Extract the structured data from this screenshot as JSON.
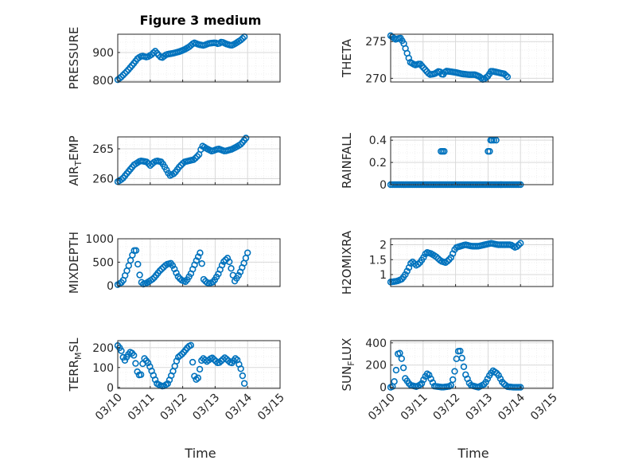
{
  "title": "Figure 3 medium",
  "xlabel": "Time",
  "colors": {
    "marker": "#0072BD",
    "grid": "#d9d9d9",
    "axis": "#262626"
  },
  "x_ticks": [
    "03/10",
    "03/11",
    "03/12",
    "03/13",
    "03/14",
    "03/15"
  ],
  "chart_data": [
    {
      "type": "scatter",
      "ylabel": "PRESSURE",
      "ylabel_main": "PRESSURE",
      "ylabel_sub": "",
      "ylabel_rest": "",
      "xlim": [
        0,
        5
      ],
      "ylim": [
        795,
        965
      ],
      "yticks": [
        800,
        900
      ],
      "keypoints": [
        [
          0,
          803
        ],
        [
          0.1,
          812
        ],
        [
          0.3,
          835
        ],
        [
          0.5,
          862
        ],
        [
          0.62,
          880
        ],
        [
          0.75,
          888
        ],
        [
          0.9,
          883
        ],
        [
          1.05,
          893
        ],
        [
          1.15,
          905
        ],
        [
          1.25,
          892
        ],
        [
          1.35,
          880
        ],
        [
          1.5,
          893
        ],
        [
          1.7,
          897
        ],
        [
          1.9,
          903
        ],
        [
          2.05,
          910
        ],
        [
          2.2,
          920
        ],
        [
          2.35,
          935
        ],
        [
          2.5,
          928
        ],
        [
          2.65,
          925
        ],
        [
          2.8,
          932
        ],
        [
          3.0,
          935
        ],
        [
          3.1,
          930
        ],
        [
          3.2,
          938
        ],
        [
          3.35,
          930
        ],
        [
          3.5,
          925
        ],
        [
          3.6,
          930
        ],
        [
          3.8,
          945
        ],
        [
          3.9,
          956
        ]
      ]
    },
    {
      "type": "scatter",
      "ylabel": "THETA",
      "ylabel_main": "THETA",
      "ylabel_sub": "",
      "ylabel_rest": "",
      "xlim": [
        0,
        5
      ],
      "ylim": [
        269.5,
        276
      ],
      "yticks": [
        270,
        275
      ],
      "keypoints": [
        [
          0,
          275.8
        ],
        [
          0.15,
          275.3
        ],
        [
          0.3,
          275.5
        ],
        [
          0.4,
          274.8
        ],
        [
          0.5,
          273.5
        ],
        [
          0.6,
          272.2
        ],
        [
          0.75,
          271.8
        ],
        [
          0.9,
          272.0
        ],
        [
          1.0,
          271.5
        ],
        [
          1.1,
          271.0
        ],
        [
          1.2,
          270.5
        ],
        [
          1.35,
          270.6
        ],
        [
          1.5,
          271.0
        ],
        [
          1.6,
          270.4
        ],
        [
          1.7,
          271.0
        ],
        [
          1.85,
          270.9
        ],
        [
          2.0,
          270.8
        ],
        [
          2.2,
          270.6
        ],
        [
          2.4,
          270.5
        ],
        [
          2.6,
          270.5
        ],
        [
          2.75,
          270.2
        ],
        [
          2.85,
          269.8
        ],
        [
          3.0,
          270.3
        ],
        [
          3.1,
          271.0
        ],
        [
          3.3,
          270.8
        ],
        [
          3.5,
          270.6
        ],
        [
          3.6,
          270.2
        ]
      ]
    },
    {
      "type": "scatter",
      "ylabel": "AIR_TEMP",
      "ylabel_main": "AIR",
      "ylabel_sub": "T",
      "ylabel_rest": "EMP",
      "xlim": [
        0,
        5
      ],
      "ylim": [
        259,
        267
      ],
      "yticks": [
        260,
        265
      ],
      "keypoints": [
        [
          0,
          259.5
        ],
        [
          0.15,
          260.0
        ],
        [
          0.3,
          261.0
        ],
        [
          0.5,
          262.3
        ],
        [
          0.7,
          263.0
        ],
        [
          0.9,
          262.8
        ],
        [
          1.0,
          262.2
        ],
        [
          1.1,
          262.7
        ],
        [
          1.2,
          263.0
        ],
        [
          1.35,
          262.8
        ],
        [
          1.5,
          261.5
        ],
        [
          1.6,
          260.5
        ],
        [
          1.75,
          260.9
        ],
        [
          1.9,
          262.0
        ],
        [
          2.05,
          262.8
        ],
        [
          2.2,
          263.0
        ],
        [
          2.35,
          263.2
        ],
        [
          2.5,
          264.0
        ],
        [
          2.6,
          265.5
        ],
        [
          2.75,
          265.0
        ],
        [
          2.9,
          264.6
        ],
        [
          3.1,
          265.0
        ],
        [
          3.3,
          264.6
        ],
        [
          3.5,
          264.9
        ],
        [
          3.65,
          265.3
        ],
        [
          3.8,
          265.8
        ],
        [
          3.95,
          266.8
        ]
      ]
    },
    {
      "type": "scatter",
      "ylabel": "RAINFALL",
      "ylabel_main": "RAINFALL",
      "ylabel_sub": "",
      "ylabel_rest": "",
      "xlim": [
        0,
        5
      ],
      "ylim": [
        0,
        0.43
      ],
      "yticks": [
        0,
        0.2,
        0.4
      ],
      "keypoints": [
        [
          0,
          0
        ],
        [
          1.8,
          0
        ],
        [
          2.0,
          0
        ],
        [
          3.75,
          0
        ],
        [
          4.0,
          0
        ]
      ],
      "highlights": [
        [
          1.55,
          0.3
        ],
        [
          1.6,
          0.3
        ],
        [
          1.65,
          0.3
        ],
        [
          3.0,
          0.3
        ],
        [
          3.05,
          0.3
        ],
        [
          3.08,
          0.4
        ],
        [
          3.12,
          0.4
        ],
        [
          3.18,
          0.4
        ],
        [
          3.25,
          0.4
        ],
        [
          3.4,
          0.0
        ]
      ]
    },
    {
      "type": "scatter",
      "ylabel": "MIXDEPTH",
      "ylabel_main": "MIXDEPTH",
      "ylabel_sub": "",
      "ylabel_rest": "",
      "xlim": [
        0,
        5
      ],
      "ylim": [
        -20,
        1000
      ],
      "yticks": [
        0,
        500,
        1000
      ],
      "keypoints": [
        [
          0,
          20
        ],
        [
          0.15,
          80
        ],
        [
          0.3,
          350
        ],
        [
          0.45,
          650
        ],
        [
          0.55,
          820
        ],
        [
          0.65,
          300
        ],
        [
          0.75,
          20
        ],
        [
          0.9,
          60
        ],
        [
          1.1,
          150
        ],
        [
          1.3,
          320
        ],
        [
          1.5,
          450
        ],
        [
          1.65,
          480
        ],
        [
          1.75,
          350
        ],
        [
          1.85,
          200
        ],
        [
          1.95,
          120
        ],
        [
          2.1,
          80
        ],
        [
          2.25,
          250
        ],
        [
          2.4,
          500
        ],
        [
          2.55,
          720
        ],
        [
          2.65,
          120
        ],
        [
          2.8,
          40
        ],
        [
          2.95,
          80
        ],
        [
          3.1,
          250
        ],
        [
          3.25,
          500
        ],
        [
          3.4,
          600
        ],
        [
          3.5,
          350
        ],
        [
          3.6,
          90
        ],
        [
          3.75,
          250
        ],
        [
          3.9,
          500
        ],
        [
          4.0,
          700
        ]
      ]
    },
    {
      "type": "scatter",
      "ylabel": "H2OMIXRA",
      "ylabel_main": "H2OMIXRA",
      "ylabel_sub": "",
      "ylabel_rest": "",
      "xlim": [
        0,
        5
      ],
      "ylim": [
        0.6,
        2.2
      ],
      "yticks": [
        1,
        1.5,
        2
      ],
      "keypoints": [
        [
          0,
          0.75
        ],
        [
          0.2,
          0.78
        ],
        [
          0.35,
          0.85
        ],
        [
          0.45,
          1.0
        ],
        [
          0.55,
          1.2
        ],
        [
          0.65,
          1.45
        ],
        [
          0.8,
          1.3
        ],
        [
          0.9,
          1.4
        ],
        [
          1.0,
          1.55
        ],
        [
          1.1,
          1.75
        ],
        [
          1.25,
          1.7
        ],
        [
          1.4,
          1.6
        ],
        [
          1.55,
          1.45
        ],
        [
          1.7,
          1.4
        ],
        [
          1.85,
          1.55
        ],
        [
          2.0,
          1.9
        ],
        [
          2.15,
          1.95
        ],
        [
          2.3,
          2.0
        ],
        [
          2.5,
          1.95
        ],
        [
          2.7,
          1.95
        ],
        [
          2.9,
          2.0
        ],
        [
          3.1,
          2.05
        ],
        [
          3.3,
          2.0
        ],
        [
          3.5,
          2.0
        ],
        [
          3.7,
          2.0
        ],
        [
          3.85,
          1.9
        ],
        [
          4.0,
          2.05
        ]
      ]
    },
    {
      "type": "scatter",
      "ylabel": "TERR_MSL",
      "ylabel_main": "TERR",
      "ylabel_sub": "M",
      "ylabel_rest": "SL",
      "xlim": [
        0,
        5
      ],
      "ylim": [
        -5,
        235
      ],
      "yticks": [
        0,
        100,
        200
      ],
      "keypoints": [
        [
          0,
          210
        ],
        [
          0.1,
          190
        ],
        [
          0.2,
          130
        ],
        [
          0.3,
          160
        ],
        [
          0.4,
          180
        ],
        [
          0.5,
          160
        ],
        [
          0.6,
          80
        ],
        [
          0.7,
          50
        ],
        [
          0.8,
          150
        ],
        [
          0.95,
          120
        ],
        [
          1.1,
          60
        ],
        [
          1.2,
          20
        ],
        [
          1.3,
          10
        ],
        [
          1.4,
          5
        ],
        [
          1.55,
          20
        ],
        [
          1.7,
          80
        ],
        [
          1.85,
          150
        ],
        [
          2.0,
          170
        ],
        [
          2.15,
          200
        ],
        [
          2.25,
          215
        ],
        [
          2.35,
          60
        ],
        [
          2.45,
          30
        ],
        [
          2.6,
          150
        ],
        [
          2.75,
          130
        ],
        [
          2.9,
          150
        ],
        [
          3.1,
          120
        ],
        [
          3.3,
          150
        ],
        [
          3.5,
          120
        ],
        [
          3.65,
          150
        ],
        [
          3.8,
          90
        ],
        [
          3.9,
          20
        ]
      ]
    },
    {
      "type": "scatter",
      "ylabel": "SUN_FLUX",
      "ylabel_main": "SUN",
      "ylabel_sub": "F",
      "ylabel_rest": "LUX",
      "xlim": [
        0,
        5
      ],
      "ylim": [
        -10,
        420
      ],
      "yticks": [
        0,
        200,
        400
      ],
      "keypoints": [
        [
          0,
          0
        ],
        [
          0.08,
          10
        ],
        [
          0.15,
          100
        ],
        [
          0.22,
          300
        ],
        [
          0.3,
          310
        ],
        [
          0.38,
          200
        ],
        [
          0.45,
          80
        ],
        [
          0.6,
          20
        ],
        [
          0.8,
          5
        ],
        [
          0.95,
          30
        ],
        [
          1.05,
          90
        ],
        [
          1.15,
          130
        ],
        [
          1.25,
          70
        ],
        [
          1.35,
          10
        ],
        [
          1.6,
          0
        ],
        [
          1.85,
          10
        ],
        [
          1.95,
          100
        ],
        [
          2.05,
          300
        ],
        [
          2.12,
          350
        ],
        [
          2.2,
          260
        ],
        [
          2.3,
          120
        ],
        [
          2.45,
          20
        ],
        [
          2.7,
          0
        ],
        [
          2.9,
          30
        ],
        [
          3.05,
          110
        ],
        [
          3.15,
          150
        ],
        [
          3.3,
          120
        ],
        [
          3.45,
          40
        ],
        [
          3.6,
          5
        ],
        [
          3.8,
          0
        ],
        [
          4.0,
          0
        ]
      ]
    }
  ]
}
